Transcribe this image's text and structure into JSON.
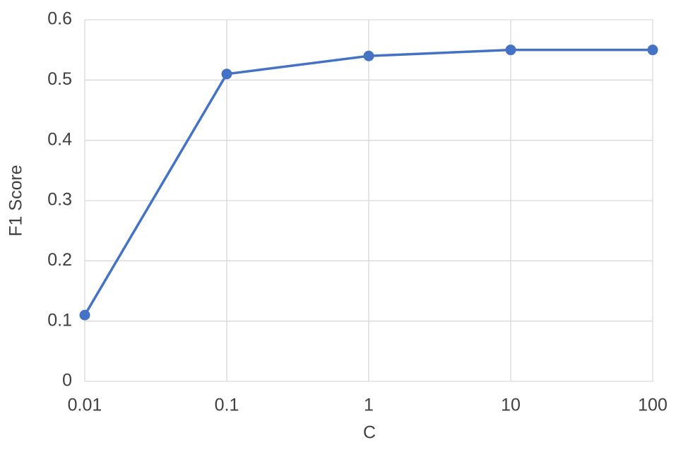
{
  "chart_data": {
    "type": "line",
    "x": [
      0.01,
      0.1,
      1,
      10,
      100
    ],
    "series": [
      {
        "color": "#4472c4",
        "values": [
          0.11,
          0.51,
          0.54,
          0.55,
          0.55
        ]
      }
    ],
    "xlim": [
      0.01,
      100
    ],
    "xticks": [
      0.01,
      0.1,
      1,
      10,
      100
    ],
    "xscale": "log",
    "ylim": [
      0,
      0.6
    ],
    "yticks": [
      0,
      0.1,
      0.2,
      0.3,
      0.4,
      0.5,
      0.6
    ],
    "xlabel": "C",
    "ylabel": "F1 Score",
    "grid": true
  }
}
